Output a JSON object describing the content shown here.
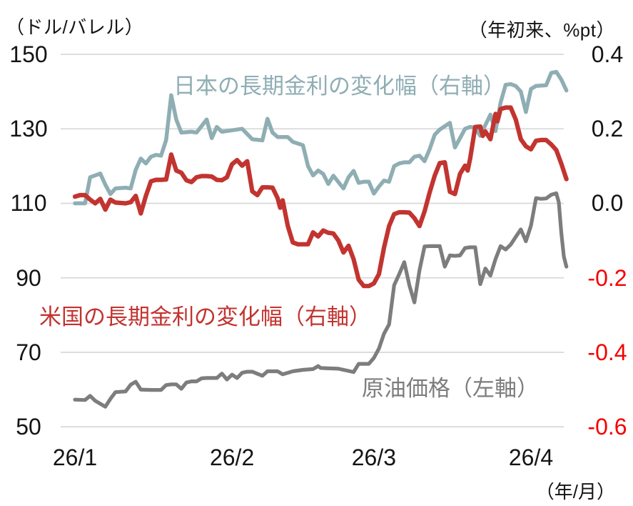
{
  "chart_data": {
    "type": "line",
    "title": "",
    "left_axis": {
      "label": "（ドル/バレル）",
      "ticks": [
        "150",
        "130",
        "110",
        "90",
        "70",
        "50"
      ],
      "min": 50,
      "max": 150,
      "gridlines": true
    },
    "right_axis": {
      "label": "（年初来、%pt）",
      "ticks": [
        "0.4",
        "0.2",
        "0.0",
        "-0.2",
        "-0.4",
        "-0.6"
      ],
      "min": -0.6,
      "max": 0.4,
      "negative_tick_color": "#F50000"
    },
    "x_axis": {
      "ticks": [
        "26/1",
        "26/2",
        "26/3",
        "26/4"
      ],
      "tick_days": [
        0,
        31,
        59,
        90
      ],
      "unit_label": "（年/月）"
    },
    "grid_color": "#D9D9D9",
    "tick_color": "#141414",
    "series": [
      {
        "name": "japan-rate",
        "label": "日本の長期金利の変化幅（右軸）",
        "axis": "right",
        "color": "#8FAEB4",
        "points": [
          [
            0,
            0.0
          ],
          [
            2,
            0.0
          ],
          [
            3,
            0.07
          ],
          [
            5,
            0.08
          ],
          [
            6,
            0.05
          ],
          [
            7,
            0.025
          ],
          [
            8,
            0.04
          ],
          [
            10,
            0.042
          ],
          [
            11,
            0.04
          ],
          [
            12,
            0.09
          ],
          [
            13,
            0.12
          ],
          [
            14,
            0.107
          ],
          [
            15,
            0.125
          ],
          [
            16,
            0.13
          ],
          [
            17,
            0.128
          ],
          [
            18,
            0.17
          ],
          [
            19,
            0.29
          ],
          [
            20,
            0.225
          ],
          [
            21,
            0.19
          ],
          [
            23,
            0.192
          ],
          [
            24,
            0.19
          ],
          [
            26,
            0.225
          ],
          [
            27,
            0.175
          ],
          [
            28,
            0.205
          ],
          [
            29,
            0.192
          ],
          [
            31,
            0.196
          ],
          [
            33,
            0.2
          ],
          [
            35,
            0.172
          ],
          [
            37,
            0.169
          ],
          [
            38,
            0.227
          ],
          [
            39,
            0.19
          ],
          [
            40,
            0.178
          ],
          [
            42,
            0.178
          ],
          [
            43,
            0.165
          ],
          [
            45,
            0.156
          ],
          [
            46,
            0.1
          ],
          [
            47,
            0.075
          ],
          [
            48,
            0.088
          ],
          [
            49,
            0.079
          ],
          [
            50,
            0.052
          ],
          [
            51,
            0.074
          ],
          [
            53,
            0.04
          ],
          [
            54,
            0.07
          ],
          [
            55,
            0.087
          ],
          [
            56,
            0.055
          ],
          [
            57,
            0.058
          ],
          [
            58,
            0.058
          ],
          [
            59,
            0.026
          ],
          [
            60,
            0.045
          ],
          [
            61,
            0.061
          ],
          [
            62,
            0.058
          ],
          [
            63,
            0.1
          ],
          [
            64,
            0.107
          ],
          [
            65,
            0.11
          ],
          [
            66,
            0.11
          ],
          [
            67,
            0.125
          ],
          [
            68,
            0.128
          ],
          [
            69,
            0.113
          ],
          [
            70,
            0.145
          ],
          [
            71,
            0.184
          ],
          [
            72,
            0.198
          ],
          [
            73,
            0.207
          ],
          [
            74,
            0.216
          ],
          [
            75,
            0.15
          ],
          [
            76,
            0.175
          ],
          [
            77,
            0.2
          ],
          [
            78,
            0.205
          ],
          [
            79,
            0.203
          ],
          [
            80,
            0.181
          ],
          [
            81,
            0.21
          ],
          [
            82,
            0.238
          ],
          [
            83,
            0.194
          ],
          [
            84,
            0.27
          ],
          [
            85,
            0.318
          ],
          [
            86,
            0.32
          ],
          [
            87,
            0.315
          ],
          [
            88,
            0.3
          ],
          [
            89,
            0.245
          ],
          [
            90,
            0.307
          ],
          [
            91,
            0.315
          ],
          [
            92,
            0.316
          ],
          [
            93,
            0.317
          ],
          [
            94,
            0.35
          ],
          [
            95,
            0.353
          ],
          [
            96,
            0.332
          ],
          [
            97,
            0.303
          ]
        ]
      },
      {
        "name": "oil-price",
        "label": "原油価格（左軸）",
        "axis": "left",
        "color": "#7D7D7D",
        "points": [
          [
            0,
            57.3
          ],
          [
            2,
            57.2
          ],
          [
            3,
            58.3
          ],
          [
            4,
            57.0
          ],
          [
            6,
            55.4
          ],
          [
            7,
            57.5
          ],
          [
            8,
            59.3
          ],
          [
            10,
            59.5
          ],
          [
            11,
            61.3
          ],
          [
            12,
            62.1
          ],
          [
            13,
            60.0
          ],
          [
            15,
            59.9
          ],
          [
            17,
            59.9
          ],
          [
            18,
            61.2
          ],
          [
            19,
            61.4
          ],
          [
            20,
            61.4
          ],
          [
            21,
            60.2
          ],
          [
            22,
            61.9
          ],
          [
            23,
            62.2
          ],
          [
            24,
            62.2
          ],
          [
            25,
            63.0
          ],
          [
            26,
            63.1
          ],
          [
            28,
            63.1
          ],
          [
            29,
            64.3
          ],
          [
            30,
            62.7
          ],
          [
            31,
            64.0
          ],
          [
            32,
            63.1
          ],
          [
            33,
            64.5
          ],
          [
            34,
            64.8
          ],
          [
            35,
            64.8
          ],
          [
            37,
            63.7
          ],
          [
            38,
            64.9
          ],
          [
            39,
            64.9
          ],
          [
            40,
            64.9
          ],
          [
            41,
            64.1
          ],
          [
            43,
            64.9
          ],
          [
            45,
            65.3
          ],
          [
            47,
            65.5
          ],
          [
            48,
            66.3
          ],
          [
            48.5,
            65.8
          ],
          [
            50,
            65.7
          ],
          [
            52,
            65.6
          ],
          [
            54,
            65.0
          ],
          [
            55,
            64.7
          ],
          [
            56,
            66.9
          ],
          [
            58,
            66.9
          ],
          [
            59,
            68.5
          ],
          [
            60,
            71.0
          ],
          [
            61,
            75.0
          ],
          [
            62,
            77.5
          ],
          [
            63,
            88.0
          ],
          [
            64,
            91.0
          ],
          [
            65,
            94.2
          ],
          [
            66,
            88.0
          ],
          [
            67,
            83.4
          ],
          [
            68,
            92.0
          ],
          [
            69,
            98.4
          ],
          [
            70,
            98.5
          ],
          [
            72,
            98.5
          ],
          [
            73,
            93.0
          ],
          [
            74,
            96.0
          ],
          [
            75,
            95.9
          ],
          [
            76,
            96.0
          ],
          [
            77,
            98.0
          ],
          [
            78,
            98.2
          ],
          [
            79,
            98.2
          ],
          [
            80,
            88.3
          ],
          [
            81,
            92.5
          ],
          [
            82,
            90.6
          ],
          [
            83,
            95.0
          ],
          [
            84,
            98.5
          ],
          [
            85,
            97.6
          ],
          [
            86,
            98.9
          ],
          [
            87,
            101.0
          ],
          [
            88,
            103.0
          ],
          [
            88.7,
            100.8
          ],
          [
            89,
            99.8
          ],
          [
            90,
            104.0
          ],
          [
            91,
            111.4
          ],
          [
            92,
            111.2
          ],
          [
            93,
            111.3
          ],
          [
            94,
            112.3
          ],
          [
            95,
            112.7
          ],
          [
            95.5,
            110.3
          ],
          [
            96,
            102.0
          ],
          [
            96.5,
            95.7
          ],
          [
            97,
            93.0
          ]
        ]
      },
      {
        "name": "us-rate",
        "label": "米国の長期金利の変化幅（右軸）",
        "axis": "right",
        "color": "#C23430",
        "points": [
          [
            0,
            0.018
          ],
          [
            1,
            0.022
          ],
          [
            2,
            0.022
          ],
          [
            3,
            0.01
          ],
          [
            4,
            0.0
          ],
          [
            5,
            0.012
          ],
          [
            6,
            -0.017
          ],
          [
            7,
            0.01
          ],
          [
            8,
            0.002
          ],
          [
            10,
            0.0
          ],
          [
            11,
            0.003
          ],
          [
            12,
            0.02
          ],
          [
            13,
            -0.027
          ],
          [
            14,
            0.02
          ],
          [
            15,
            0.059
          ],
          [
            16,
            0.063
          ],
          [
            17,
            0.063
          ],
          [
            18,
            0.064
          ],
          [
            19,
            0.131
          ],
          [
            20,
            0.088
          ],
          [
            21,
            0.082
          ],
          [
            22,
            0.062
          ],
          [
            23,
            0.057
          ],
          [
            24,
            0.07
          ],
          [
            25,
            0.073
          ],
          [
            26,
            0.073
          ],
          [
            27,
            0.072
          ],
          [
            28,
            0.063
          ],
          [
            29,
            0.062
          ],
          [
            30,
            0.07
          ],
          [
            31,
            0.105
          ],
          [
            32,
            0.116
          ],
          [
            33,
            0.101
          ],
          [
            34,
            0.113
          ],
          [
            35,
            0.032
          ],
          [
            36,
            0.022
          ],
          [
            37,
            0.043
          ],
          [
            38,
            0.043
          ],
          [
            39,
            0.042
          ],
          [
            40,
            0.014
          ],
          [
            40.5,
            -0.012
          ],
          [
            41,
            0.008
          ],
          [
            42,
            -0.06
          ],
          [
            43,
            -0.105
          ],
          [
            44,
            -0.11
          ],
          [
            46,
            -0.11
          ],
          [
            47,
            -0.078
          ],
          [
            48,
            -0.089
          ],
          [
            49,
            -0.073
          ],
          [
            50,
            -0.079
          ],
          [
            51,
            -0.081
          ],
          [
            52,
            -0.1
          ],
          [
            53,
            -0.132
          ],
          [
            54,
            -0.114
          ],
          [
            55,
            -0.15
          ],
          [
            56,
            -0.205
          ],
          [
            57,
            -0.222
          ],
          [
            58,
            -0.222
          ],
          [
            59,
            -0.215
          ],
          [
            60,
            -0.19
          ],
          [
            61,
            -0.119
          ],
          [
            62,
            -0.061
          ],
          [
            63,
            -0.029
          ],
          [
            64,
            -0.024
          ],
          [
            65,
            -0.024
          ],
          [
            66,
            -0.025
          ],
          [
            67,
            -0.04
          ],
          [
            68,
            -0.061
          ],
          [
            69,
            -0.022
          ],
          [
            70,
            0.029
          ],
          [
            71,
            0.074
          ],
          [
            72,
            0.108
          ],
          [
            73,
            0.11
          ],
          [
            74,
            0.031
          ],
          [
            75,
            0.025
          ],
          [
            76,
            0.079
          ],
          [
            77,
            0.101
          ],
          [
            77.5,
            0.088
          ],
          [
            78,
            0.12
          ],
          [
            79,
            0.205
          ],
          [
            80,
            0.206
          ],
          [
            80.5,
            0.181
          ],
          [
            81,
            0.193
          ],
          [
            82,
            0.172
          ],
          [
            83,
            0.24
          ],
          [
            83.4,
            0.22
          ],
          [
            84,
            0.253
          ],
          [
            85,
            0.257
          ],
          [
            86,
            0.257
          ],
          [
            87,
            0.225
          ],
          [
            88,
            0.172
          ],
          [
            89,
            0.153
          ],
          [
            90,
            0.145
          ],
          [
            91,
            0.168
          ],
          [
            92,
            0.17
          ],
          [
            93,
            0.17
          ],
          [
            94,
            0.158
          ],
          [
            95,
            0.143
          ],
          [
            96,
            0.106
          ],
          [
            97,
            0.065
          ]
        ]
      }
    ]
  }
}
